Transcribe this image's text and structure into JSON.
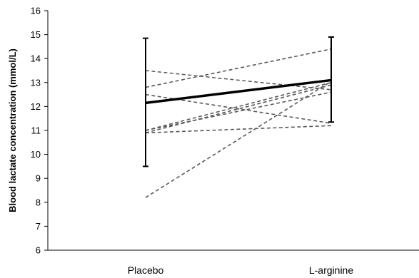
{
  "chart_data": {
    "type": "line",
    "title": "",
    "xlabel": "",
    "ylabel": "Blood lactate concentration (mmol/L)",
    "categories": [
      "Placebo",
      "L-arginine"
    ],
    "ylim": [
      6,
      16
    ],
    "yticks": [
      6,
      7,
      8,
      9,
      10,
      11,
      12,
      13,
      14,
      15,
      16
    ],
    "grid": false,
    "legend": "none",
    "mean": {
      "values": [
        12.15,
        13.1
      ],
      "error_low": [
        9.5,
        11.35
      ],
      "error_high": [
        14.85,
        14.9
      ],
      "color": "#000000"
    },
    "individuals": {
      "color": "#595959",
      "style": "dashed",
      "series": [
        {
          "values": [
            13.5,
            12.7
          ]
        },
        {
          "values": [
            12.8,
            14.4
          ]
        },
        {
          "values": [
            12.5,
            11.3
          ]
        },
        {
          "values": [
            11.0,
            12.6
          ]
        },
        {
          "values": [
            11.0,
            13.0
          ]
        },
        {
          "values": [
            10.9,
            11.2
          ]
        },
        {
          "values": [
            10.9,
            12.9
          ]
        },
        {
          "values": [
            8.2,
            13.05
          ]
        }
      ]
    }
  }
}
